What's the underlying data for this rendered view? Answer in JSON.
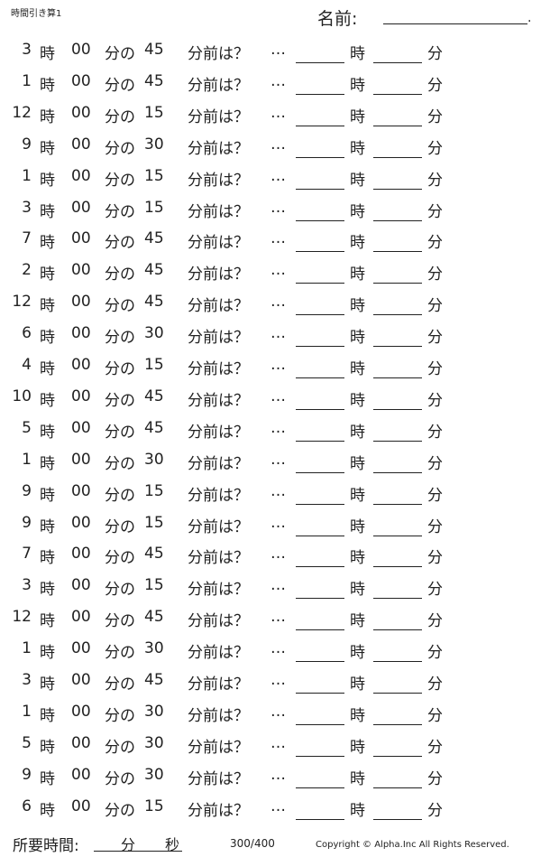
{
  "header": {
    "title": "時間引き算1",
    "name_label": "名前:",
    "name_end": "."
  },
  "labels": {
    "hour": "時",
    "zero_minutes": "00",
    "minute_of": "分の",
    "minutes_before": "分前は？",
    "ellipsis": "…",
    "answer_hour": "時",
    "answer_minute": "分"
  },
  "problems": [
    {
      "hour": "3",
      "minus": "45"
    },
    {
      "hour": "1",
      "minus": "45"
    },
    {
      "hour": "12",
      "minus": "15"
    },
    {
      "hour": "9",
      "minus": "30"
    },
    {
      "hour": "1",
      "minus": "15"
    },
    {
      "hour": "3",
      "minus": "15"
    },
    {
      "hour": "7",
      "minus": "45"
    },
    {
      "hour": "2",
      "minus": "45"
    },
    {
      "hour": "12",
      "minus": "45"
    },
    {
      "hour": "6",
      "minus": "30"
    },
    {
      "hour": "4",
      "minus": "15"
    },
    {
      "hour": "10",
      "minus": "45"
    },
    {
      "hour": "5",
      "minus": "45"
    },
    {
      "hour": "1",
      "minus": "30"
    },
    {
      "hour": "9",
      "minus": "15"
    },
    {
      "hour": "9",
      "minus": "15"
    },
    {
      "hour": "7",
      "minus": "45"
    },
    {
      "hour": "3",
      "minus": "15"
    },
    {
      "hour": "12",
      "minus": "45"
    },
    {
      "hour": "1",
      "minus": "30"
    },
    {
      "hour": "3",
      "minus": "45"
    },
    {
      "hour": "1",
      "minus": "30"
    },
    {
      "hour": "5",
      "minus": "30"
    },
    {
      "hour": "9",
      "minus": "30"
    },
    {
      "hour": "6",
      "minus": "15"
    }
  ],
  "footer": {
    "required_time": "所要時間:",
    "minutes": "分",
    "seconds": "秒",
    "score": "300/400",
    "copyright": "Copyright ©  Alpha.Inc All Rights Reserved."
  }
}
